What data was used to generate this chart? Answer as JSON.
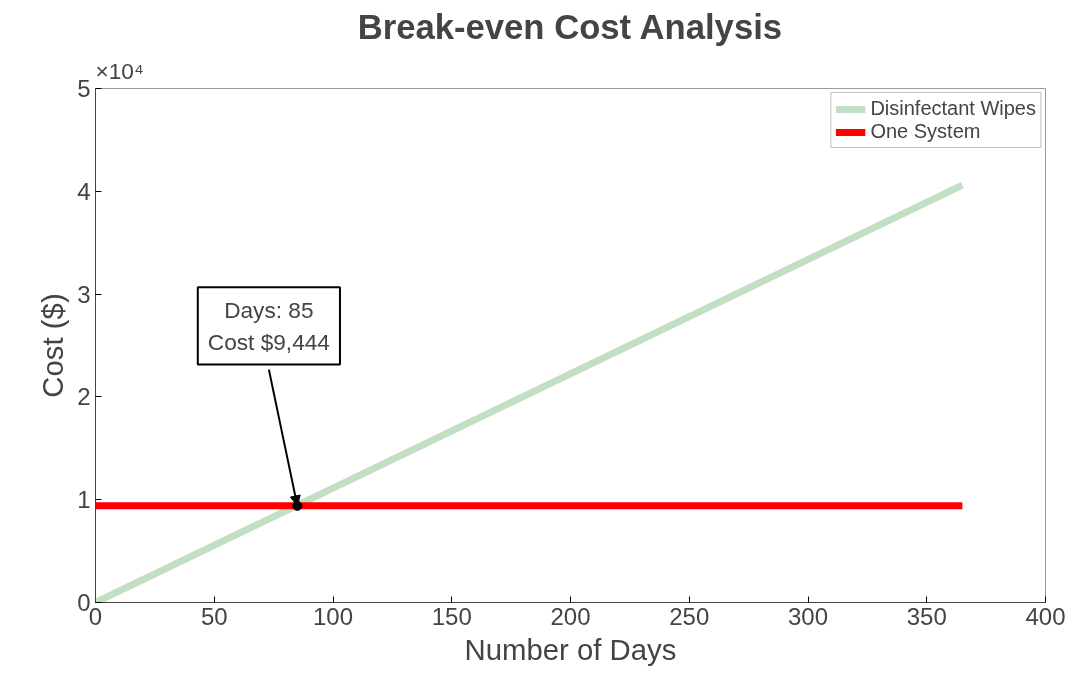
{
  "chart_data": {
    "type": "line",
    "title": "Break-even Cost Analysis",
    "xlabel": "Number of Days",
    "ylabel": "Cost ($)",
    "xlim": [
      0,
      400
    ],
    "xticks": [
      0,
      50,
      100,
      150,
      200,
      250,
      300,
      350,
      400
    ],
    "ylim": [
      0,
      5
    ],
    "yticks": [
      0,
      1,
      2,
      3,
      4,
      5
    ],
    "series": [
      {
        "name": "Disinfectant Wipes",
        "color": "#c3dfc3",
        "x": [
          0,
          365
        ],
        "values": [
          0,
          4.06
        ]
      },
      {
        "name": "One System",
        "color": "#ff0000",
        "x": [
          0,
          365
        ],
        "values": [
          0.94,
          0.94
        ]
      },
      {
        "type": "scatter",
        "color": "#000000",
        "x": [
          85
        ],
        "values": [
          0.94
        ]
      }
    ],
    "annotations": [
      "×10⁴",
      {
        "text": "Days: 85\nCost $9,444",
        "x": 85,
        "y": 0.94
      }
    ],
    "grid": false,
    "legend": "top right",
    "line_style": "solid"
  }
}
